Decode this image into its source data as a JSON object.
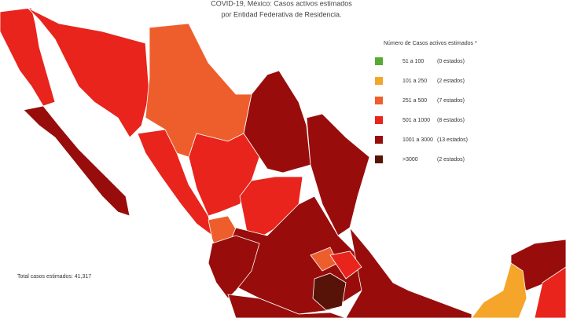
{
  "header": {
    "title": [
      "COVID-19, México: Casos activos estimados",
      "por Entidad Federativa de Residencia."
    ]
  },
  "legend": {
    "title": "Número de Casos activos estimados *",
    "items": [
      {
        "range": "51 a 100",
        "count": "(0 estados)",
        "color": "#58a836"
      },
      {
        "range": "101 a 250",
        "count": "(2 estados)",
        "color": "#f5a52a"
      },
      {
        "range": "251 a 500",
        "count": "(7 estados)",
        "color": "#ee5e2c"
      },
      {
        "range": "501 a 1000",
        "count": "(8 estados)",
        "color": "#e8241c"
      },
      {
        "range": "1001 a 3000",
        "count": "(13 estados)",
        "color": "#980d0b"
      },
      {
        "range": ">3000",
        "count": "(2 estados)",
        "color": "#581309"
      }
    ]
  },
  "total": "Total casos estimados: 41,317"
}
